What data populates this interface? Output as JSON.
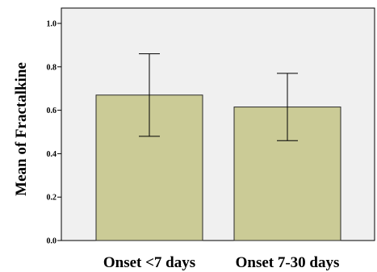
{
  "chart_data": {
    "type": "bar",
    "categories": [
      "Onset <7 days",
      "Onset 7-30 days"
    ],
    "values": [
      0.67,
      0.615
    ],
    "error_bars": [
      {
        "lower": 0.48,
        "upper": 0.86
      },
      {
        "lower": 0.46,
        "upper": 0.77
      }
    ],
    "title": "",
    "xlabel": "",
    "ylabel": "Mean of  Fractalkine",
    "ylim": [
      0,
      1.0
    ],
    "yticks": [
      "0.0",
      "0.2",
      "0.4",
      "0.6",
      "0.8",
      "1.0"
    ],
    "grid": false,
    "colors": {
      "plot_background": "#f0f0f0",
      "bar_fill": "#cbcb96",
      "bar_stroke": "#2a2a2a",
      "axis": "#000000"
    }
  }
}
